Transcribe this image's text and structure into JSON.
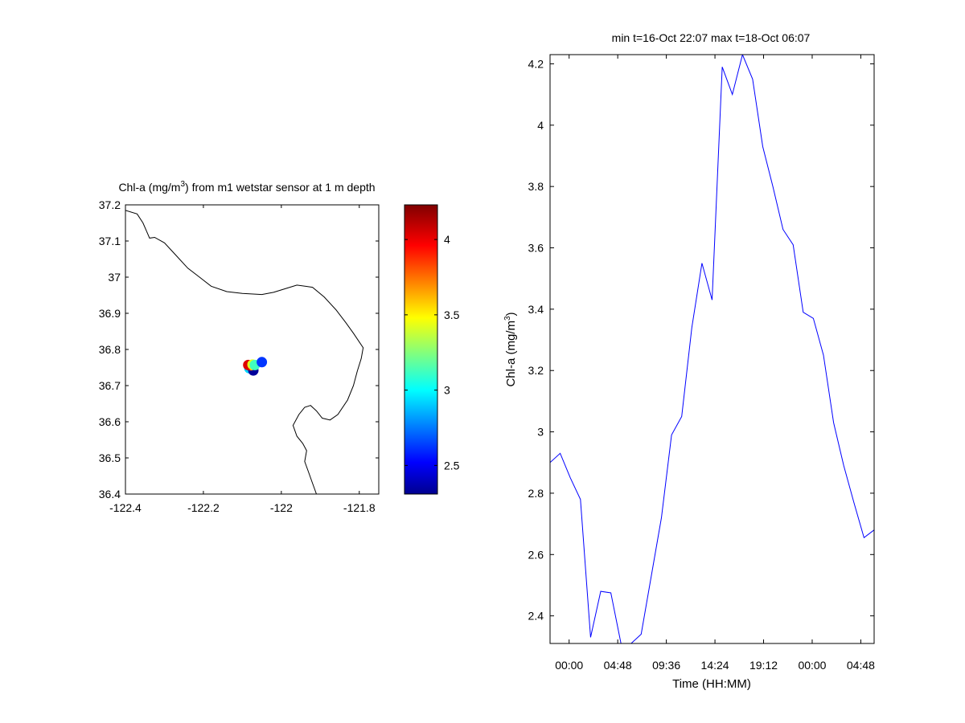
{
  "chart_data": [
    {
      "type": "scatter",
      "subtype": "map",
      "title": "Chl-a (mg/m3) from m1 wetstar sensor at 1 m depth",
      "title_parts": {
        "before": "Chl-a (mg/m",
        "sup": "3",
        "after": ") from m1 wetstar sensor at 1 m depth"
      },
      "xlim": [
        -122.4,
        -121.75
      ],
      "ylim": [
        36.4,
        37.2
      ],
      "xticks": [
        "-122.4",
        "-122.2",
        "-122",
        "-121.8"
      ],
      "xtick_values": [
        -122.4,
        -122.2,
        -122.0,
        -121.8
      ],
      "yticks": [
        "36.4",
        "36.5",
        "36.6",
        "36.7",
        "36.8",
        "36.9",
        "37",
        "37.1",
        "37.2"
      ],
      "ytick_values": [
        36.4,
        36.5,
        36.6,
        36.7,
        36.8,
        36.9,
        37.0,
        37.1,
        37.2
      ],
      "colormap": "jet",
      "color_range": [
        2.31,
        4.23
      ],
      "colorbar_ticks": [
        "2.5",
        "3",
        "3.5",
        "4"
      ],
      "colorbar_tick_values": [
        2.5,
        3.0,
        3.5,
        4.0
      ],
      "points": [
        {
          "lon": -122.082,
          "lat": 36.748,
          "value": 2.95
        },
        {
          "lon": -122.072,
          "lat": 36.742,
          "value": 2.36
        },
        {
          "lon": -122.078,
          "lat": 36.756,
          "value": 3.7
        },
        {
          "lon": -122.085,
          "lat": 36.757,
          "value": 4.05
        },
        {
          "lon": -122.074,
          "lat": 36.758,
          "value": 3.45
        },
        {
          "lon": -122.068,
          "lat": 36.757,
          "value": 3.15
        },
        {
          "lon": -122.05,
          "lat": 36.765,
          "value": 2.65
        }
      ],
      "coastline": [
        [
          -122.4,
          37.185
        ],
        [
          -122.37,
          37.175
        ],
        [
          -122.355,
          37.15
        ],
        [
          -122.345,
          37.125
        ],
        [
          -122.338,
          37.108
        ],
        [
          -122.325,
          37.11
        ],
        [
          -122.3,
          37.095
        ],
        [
          -122.27,
          37.06
        ],
        [
          -122.24,
          37.025
        ],
        [
          -122.21,
          37.0
        ],
        [
          -122.18,
          36.975
        ],
        [
          -122.14,
          36.96
        ],
        [
          -122.1,
          36.955
        ],
        [
          -122.05,
          36.952
        ],
        [
          -122.02,
          36.958
        ],
        [
          -121.99,
          36.968
        ],
        [
          -121.96,
          36.978
        ],
        [
          -121.92,
          36.972
        ],
        [
          -121.89,
          36.945
        ],
        [
          -121.86,
          36.91
        ],
        [
          -121.835,
          36.875
        ],
        [
          -121.815,
          36.845
        ],
        [
          -121.79,
          36.805
        ],
        [
          -121.795,
          36.775
        ],
        [
          -121.805,
          36.74
        ],
        [
          -121.815,
          36.7
        ],
        [
          -121.83,
          36.66
        ],
        [
          -121.855,
          36.62
        ],
        [
          -121.875,
          36.605
        ],
        [
          -121.895,
          36.61
        ],
        [
          -121.91,
          36.63
        ],
        [
          -121.925,
          36.645
        ],
        [
          -121.94,
          36.64
        ],
        [
          -121.955,
          36.62
        ],
        [
          -121.97,
          36.59
        ],
        [
          -121.96,
          36.56
        ],
        [
          -121.945,
          36.54
        ],
        [
          -121.935,
          36.52
        ],
        [
          -121.94,
          36.49
        ],
        [
          -121.93,
          36.46
        ],
        [
          -121.92,
          36.43
        ],
        [
          -121.91,
          36.4
        ]
      ]
    },
    {
      "type": "line",
      "title": "min t=16-Oct 22:07 max t=18-Oct 06:07",
      "xlabel": "Time (HH:MM)",
      "ylabel": "Chl-a (mg/m3)",
      "ylabel_parts": {
        "before": "Chl-a (mg/m",
        "sup": "3",
        "after": ")"
      },
      "x_unit": "hours since 16-Oct 00:00",
      "xlim": [
        22.1167,
        54.1167
      ],
      "ylim": [
        2.31,
        4.23
      ],
      "xtick_values": [
        24.0,
        28.8,
        33.6,
        38.4,
        43.2,
        48.0,
        52.8
      ],
      "xticks": [
        "00:00",
        "04:48",
        "09:36",
        "14:24",
        "19:12",
        "00:00",
        "04:48"
      ],
      "ytick_values": [
        2.4,
        2.6,
        2.8,
        3.0,
        3.2,
        3.4,
        3.6,
        3.8,
        4.0,
        4.2
      ],
      "yticks": [
        "2.4",
        "2.6",
        "2.8",
        "3",
        "3.2",
        "3.4",
        "3.6",
        "3.8",
        "4",
        "4.2"
      ],
      "series": [
        {
          "color": "#0000ff",
          "x": [
            22.1167,
            23.1167,
            24.1167,
            25.1167,
            26.1167,
            27.1167,
            28.1167,
            29.1167,
            30.1167,
            31.1167,
            32.1167,
            33.1167,
            34.1167,
            35.1167,
            36.1167,
            37.1167,
            38.1167,
            39.1167,
            40.1167,
            41.1167,
            42.1167,
            43.1167,
            44.1167,
            45.1167,
            46.1167,
            47.1167,
            48.1167,
            49.1167,
            50.1167,
            51.1167,
            52.1167,
            53.1167,
            54.1167
          ],
          "values": [
            2.9,
            2.93,
            2.85,
            2.78,
            2.33,
            2.48,
            2.475,
            2.31,
            2.31,
            2.34,
            2.53,
            2.72,
            2.99,
            3.05,
            3.34,
            3.55,
            3.43,
            4.19,
            4.1,
            4.23,
            4.15,
            3.93,
            3.8,
            3.66,
            3.61,
            3.39,
            3.37,
            3.25,
            3.03,
            2.89,
            2.77,
            2.655,
            2.68
          ]
        }
      ]
    }
  ]
}
